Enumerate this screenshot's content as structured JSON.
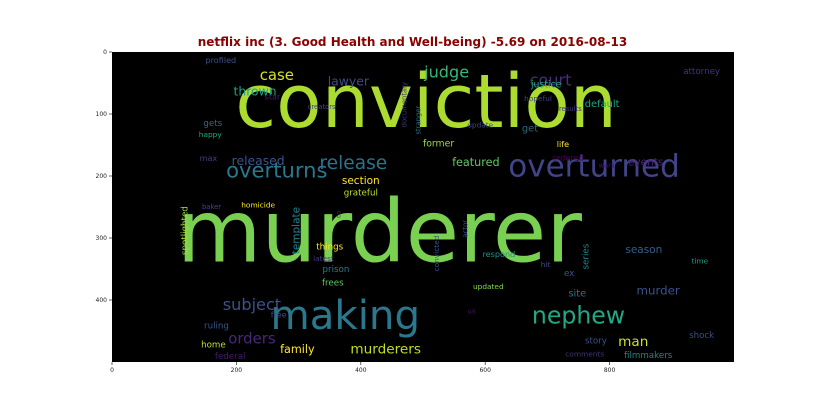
{
  "chart_data": {
    "type": "wordcloud",
    "title": "netflix inc (3. Good Health and Well-being) -5.69 on 2016-08-13",
    "xlim": [
      0,
      1000
    ],
    "ylim": [
      500,
      0
    ],
    "xticks": [
      0,
      200,
      400,
      600,
      800
    ],
    "yticks": [
      0,
      100,
      200,
      300,
      400
    ],
    "grid": false,
    "background": "#000000",
    "words": [
      {
        "text": "conviction",
        "x": 505,
        "y": 80,
        "size": 120,
        "color": "#addc30"
      },
      {
        "text": "murderer",
        "x": 430,
        "y": 290,
        "size": 140,
        "color": "#7ad151"
      },
      {
        "text": "overturned",
        "x": 775,
        "y": 185,
        "size": 50,
        "color": "#414487"
      },
      {
        "text": "overturns",
        "x": 265,
        "y": 190,
        "size": 34,
        "color": "#2a788e"
      },
      {
        "text": "making",
        "x": 375,
        "y": 425,
        "size": 65,
        "color": "#2a788e"
      },
      {
        "text": "nephew",
        "x": 750,
        "y": 425,
        "size": 38,
        "color": "#22a884"
      },
      {
        "text": "murderers",
        "x": 440,
        "y": 480,
        "size": 22,
        "color": "#c2df23"
      },
      {
        "text": "family",
        "x": 298,
        "y": 480,
        "size": 18,
        "color": "#fde725"
      },
      {
        "text": "subject",
        "x": 225,
        "y": 407,
        "size": 26,
        "color": "#3b528b"
      },
      {
        "text": "orders",
        "x": 225,
        "y": 462,
        "size": 24,
        "color": "#482878"
      },
      {
        "text": "release",
        "x": 388,
        "y": 180,
        "size": 30,
        "color": "#2c728e"
      },
      {
        "text": "released",
        "x": 235,
        "y": 175,
        "size": 20,
        "color": "#39568c"
      },
      {
        "text": "judge",
        "x": 538,
        "y": 32,
        "size": 26,
        "color": "#35b779"
      },
      {
        "text": "court",
        "x": 705,
        "y": 45,
        "size": 26,
        "color": "#472d7b"
      },
      {
        "text": "case",
        "x": 265,
        "y": 37,
        "size": 24,
        "color": "#d8e219"
      },
      {
        "text": "lawyer",
        "x": 380,
        "y": 47,
        "size": 20,
        "color": "#3e4a89"
      },
      {
        "text": "thrown",
        "x": 230,
        "y": 63,
        "size": 20,
        "color": "#1f9e89"
      },
      {
        "text": "justice",
        "x": 698,
        "y": 53,
        "size": 15,
        "color": "#28ae80"
      },
      {
        "text": "default",
        "x": 788,
        "y": 85,
        "size": 16,
        "color": "#20a486"
      },
      {
        "text": "attorney",
        "x": 948,
        "y": 32,
        "size": 14,
        "color": "#46327e"
      },
      {
        "text": "featured",
        "x": 585,
        "y": 178,
        "size": 18,
        "color": "#5ec962"
      },
      {
        "text": "events",
        "x": 858,
        "y": 178,
        "size": 17,
        "color": "#482576"
      },
      {
        "text": "section",
        "x": 400,
        "y": 208,
        "size": 17,
        "color": "#fde725"
      },
      {
        "text": "grateful",
        "x": 400,
        "y": 228,
        "size": 14,
        "color": "#bddf26"
      },
      {
        "text": "template",
        "x": 297,
        "y": 288,
        "size": 17,
        "color": "#26828e"
      },
      {
        "text": "spotlighted",
        "x": 118,
        "y": 288,
        "size": 14,
        "color": "#9fda3a"
      },
      {
        "text": "homicide",
        "x": 235,
        "y": 247,
        "size": 12,
        "color": "#fde725"
      },
      {
        "text": "baker",
        "x": 160,
        "y": 250,
        "size": 11,
        "color": "#404688"
      },
      {
        "text": "max",
        "x": 155,
        "y": 171,
        "size": 13,
        "color": "#433e85"
      },
      {
        "text": "gets",
        "x": 162,
        "y": 116,
        "size": 14,
        "color": "#31688e"
      },
      {
        "text": "happy",
        "x": 158,
        "y": 133,
        "size": 12,
        "color": "#22a884"
      },
      {
        "text": "profiled",
        "x": 175,
        "y": 13,
        "size": 13,
        "color": "#3b528b"
      },
      {
        "text": "star",
        "x": 258,
        "y": 72,
        "size": 13,
        "color": "#481f70"
      },
      {
        "text": "creators",
        "x": 337,
        "y": 89,
        "size": 11,
        "color": "#414487"
      },
      {
        "text": "documentary",
        "x": 470,
        "y": 85,
        "size": 11,
        "color": "#46337f"
      },
      {
        "text": "stranger",
        "x": 493,
        "y": 110,
        "size": 11,
        "color": "#2c728e"
      },
      {
        "text": "former",
        "x": 525,
        "y": 148,
        "size": 15,
        "color": "#9bd93c"
      },
      {
        "text": "update",
        "x": 592,
        "y": 118,
        "size": 12,
        "color": "#3e4989"
      },
      {
        "text": "get",
        "x": 672,
        "y": 124,
        "size": 16,
        "color": "#30697e"
      },
      {
        "text": "hopeful",
        "x": 685,
        "y": 75,
        "size": 12,
        "color": "#414487"
      },
      {
        "text": "results",
        "x": 737,
        "y": 92,
        "size": 11,
        "color": "#453781"
      },
      {
        "text": "life",
        "x": 725,
        "y": 148,
        "size": 13,
        "color": "#fde725"
      },
      {
        "text": "ordered",
        "x": 733,
        "y": 170,
        "size": 13,
        "color": "#440154"
      },
      {
        "text": "wars",
        "x": 795,
        "y": 183,
        "size": 11,
        "color": "#3b0f70"
      },
      {
        "text": "co",
        "x": 365,
        "y": 262,
        "size": 10,
        "color": "#31307f"
      },
      {
        "text": "things",
        "x": 350,
        "y": 315,
        "size": 14,
        "color": "#fde725"
      },
      {
        "text": "latest",
        "x": 340,
        "y": 333,
        "size": 12,
        "color": "#453781"
      },
      {
        "text": "prison",
        "x": 360,
        "y": 352,
        "size": 14,
        "color": "#287c8e"
      },
      {
        "text": "frees",
        "x": 355,
        "y": 373,
        "size": 14,
        "color": "#5ec962"
      },
      {
        "text": "free",
        "x": 268,
        "y": 423,
        "size": 13,
        "color": "#3f4889"
      },
      {
        "text": "convicted",
        "x": 522,
        "y": 325,
        "size": 12,
        "color": "#3b528b"
      },
      {
        "text": "actor",
        "x": 568,
        "y": 285,
        "size": 11,
        "color": "#3a548c"
      },
      {
        "text": "respond",
        "x": 622,
        "y": 326,
        "size": 13,
        "color": "#21918c"
      },
      {
        "text": "updated",
        "x": 605,
        "y": 378,
        "size": 12,
        "color": "#86d549"
      },
      {
        "text": "us",
        "x": 578,
        "y": 418,
        "size": 12,
        "color": "#471063"
      },
      {
        "text": "hit",
        "x": 697,
        "y": 343,
        "size": 12,
        "color": "#3e4c8a"
      },
      {
        "text": "ex",
        "x": 735,
        "y": 358,
        "size": 14,
        "color": "#3b528b"
      },
      {
        "text": "series",
        "x": 763,
        "y": 330,
        "size": 14,
        "color": "#26818e"
      },
      {
        "text": "season",
        "x": 855,
        "y": 319,
        "size": 17,
        "color": "#355e8d"
      },
      {
        "text": "time",
        "x": 945,
        "y": 337,
        "size": 12,
        "color": "#1e9b8a"
      },
      {
        "text": "site",
        "x": 748,
        "y": 390,
        "size": 16,
        "color": "#2c738e"
      },
      {
        "text": "murder",
        "x": 878,
        "y": 385,
        "size": 19,
        "color": "#3b528b"
      },
      {
        "text": "man",
        "x": 838,
        "y": 468,
        "size": 22,
        "color": "#d0e11c"
      },
      {
        "text": "shock",
        "x": 948,
        "y": 458,
        "size": 14,
        "color": "#3e4c8a"
      },
      {
        "text": "filmmakers",
        "x": 862,
        "y": 490,
        "size": 14,
        "color": "#277f8e"
      },
      {
        "text": "story",
        "x": 778,
        "y": 467,
        "size": 14,
        "color": "#3b528b"
      },
      {
        "text": "comments",
        "x": 760,
        "y": 487,
        "size": 12,
        "color": "#46327e"
      },
      {
        "text": "ruling",
        "x": 168,
        "y": 443,
        "size": 14,
        "color": "#3a548c"
      },
      {
        "text": "home",
        "x": 163,
        "y": 473,
        "size": 14,
        "color": "#bddf26"
      },
      {
        "text": "federal",
        "x": 190,
        "y": 492,
        "size": 14,
        "color": "#481a6c"
      }
    ]
  }
}
